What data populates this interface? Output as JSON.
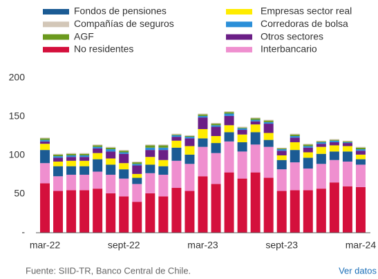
{
  "chart_data": {
    "type": "stacked_bar",
    "categories": [
      "mar-22",
      null,
      null,
      null,
      null,
      null,
      "sept-22",
      null,
      null,
      null,
      null,
      null,
      "mar-23",
      null,
      null,
      null,
      null,
      null,
      "sept-23",
      null,
      null,
      null,
      null,
      null,
      "mar-24"
    ],
    "series": [
      {
        "name": "No residentes",
        "color": "#d4103c",
        "values": [
          64,
          54,
          55,
          55,
          57,
          51,
          47,
          40,
          51,
          47,
          58,
          54,
          73,
          63,
          78,
          70,
          78,
          71,
          54,
          55,
          55,
          57,
          65,
          60,
          59
        ]
      },
      {
        "name": "Interbancario",
        "color": "#ef8fcf",
        "values": [
          26,
          19,
          20,
          20,
          22,
          24,
          23,
          23,
          26,
          28,
          35,
          35,
          38,
          40,
          40,
          35,
          36,
          40,
          28,
          36,
          28,
          32,
          29,
          32,
          29
        ]
      },
      {
        "name": "Fondos de pensiones",
        "color": "#1b5b94",
        "values": [
          17,
          13,
          11,
          11,
          16,
          13,
          12,
          8,
          11,
          11,
          17,
          12,
          11,
          13,
          12,
          12,
          16,
          9,
          12,
          16,
          14,
          13,
          11,
          13,
          7
        ]
      },
      {
        "name": "Empresas sector real",
        "color": "#ffec00",
        "values": [
          8,
          6,
          7,
          7,
          8,
          8,
          8,
          5,
          10,
          8,
          9,
          11,
          12,
          9,
          9,
          10,
          10,
          9,
          6,
          10,
          7,
          9,
          8,
          7,
          6
        ]
      },
      {
        "name": "Otros sectores",
        "color": "#6b1f86",
        "values": [
          3,
          5,
          5,
          5,
          6,
          9,
          12,
          11,
          9,
          13,
          5,
          10,
          15,
          12,
          12,
          6,
          4,
          12,
          6,
          6,
          6,
          4,
          4,
          4,
          5
        ]
      },
      {
        "name": "Corredoras de bolsa",
        "color": "#2b8fd8",
        "values": [
          2,
          2,
          2,
          2,
          2,
          3,
          2,
          2,
          3,
          3,
          2,
          2,
          2,
          2,
          3,
          2,
          2,
          2,
          2,
          2,
          2,
          2,
          2,
          1,
          2
        ]
      },
      {
        "name": "AGF",
        "color": "#6b9a1e",
        "values": [
          2,
          2,
          2,
          2,
          2,
          2,
          2,
          2,
          3,
          3,
          1,
          1,
          2,
          2,
          2,
          1,
          2,
          2,
          1,
          2,
          2,
          1,
          1,
          1,
          2
        ]
      },
      {
        "name": "Compañías de seguros",
        "color": "#d3c7b8",
        "values": [
          1,
          1,
          1,
          1,
          1,
          1,
          1,
          1,
          1,
          1,
          1,
          1,
          1,
          1,
          1,
          1,
          1,
          1,
          1,
          1,
          1,
          1,
          1,
          1,
          1
        ]
      }
    ],
    "ylim": [
      0,
      200
    ],
    "yticks": [
      {
        "value": 0,
        "label": "-"
      },
      50,
      100,
      150,
      200
    ],
    "source": "Fuente: SIID-TR, Banco Central de Chile.",
    "link": "Ver datos"
  }
}
